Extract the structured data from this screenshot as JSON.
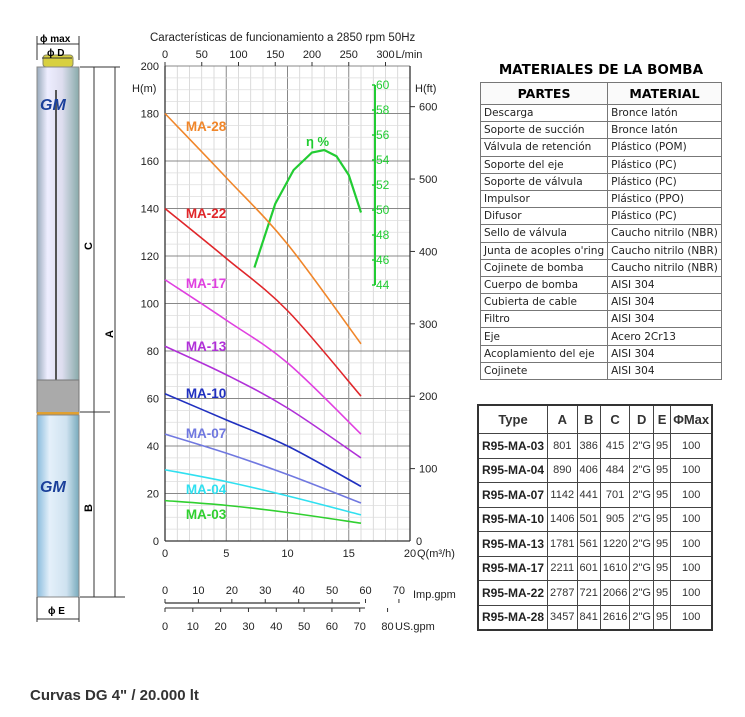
{
  "pump": {
    "brand": "GM",
    "phi_max": "ϕ max",
    "phi_d": "ϕ D",
    "phi_e": "ϕ E",
    "dim_a": "A",
    "dim_b": "B",
    "dim_c": "C"
  },
  "chart_data": {
    "type": "line",
    "title": "Características de funcionamiento a 2850 rpm 50Hz",
    "xlabel": "Q(m³/h)",
    "ylabel": "H(m)",
    "ylabel_right": "H(ft)",
    "xlim": [
      0,
      20
    ],
    "ylim": [
      0,
      200
    ],
    "x_ticks": [
      0,
      5,
      10,
      15,
      20
    ],
    "y_ticks": [
      0,
      20,
      40,
      60,
      80,
      100,
      120,
      140,
      160,
      180,
      200
    ],
    "ft_ticks": [
      100,
      200,
      300,
      400,
      500,
      600
    ],
    "top_axis": {
      "label": "L/min",
      "ticks": [
        0,
        50,
        100,
        150,
        200,
        250,
        300
      ]
    },
    "imp_axis": {
      "label": "Imp.gpm",
      "ticks": [
        0,
        10,
        20,
        30,
        40,
        50,
        60,
        70
      ]
    },
    "us_axis": {
      "label": "US.gpm",
      "ticks": [
        0,
        10,
        20,
        30,
        40,
        50,
        60,
        70,
        80
      ]
    },
    "eff_axis": {
      "label": "η %",
      "ticks": [
        44,
        46,
        48,
        50,
        52,
        54,
        56,
        58,
        60
      ]
    },
    "grid": true,
    "x": [
      0,
      5,
      10,
      16
    ],
    "series": [
      {
        "name": "MA-28",
        "color": "#f0862a",
        "values": [
          180,
          153,
          125,
          83
        ]
      },
      {
        "name": "MA-22",
        "color": "#e0262a",
        "values": [
          140,
          119,
          97,
          61
        ]
      },
      {
        "name": "MA-17",
        "color": "#e040e0",
        "values": [
          110,
          93,
          75,
          45
        ]
      },
      {
        "name": "MA-13",
        "color": "#b030d8",
        "values": [
          82,
          70,
          56,
          35
        ]
      },
      {
        "name": "MA-10",
        "color": "#2030c0",
        "values": [
          62,
          51,
          40,
          23
        ]
      },
      {
        "name": "MA-07",
        "color": "#7078e0",
        "values": [
          45,
          37,
          28,
          16
        ]
      },
      {
        "name": "MA-04",
        "color": "#30e0f0",
        "values": [
          30,
          25,
          19,
          11
        ]
      },
      {
        "name": "MA-03",
        "color": "#30d030",
        "values": [
          17,
          15,
          12,
          7.5
        ]
      }
    ],
    "efficiency": {
      "color": "#22cc33",
      "x": [
        7.3,
        9,
        10.5,
        12,
        13,
        14,
        15,
        16
      ],
      "values": [
        45.4,
        50.5,
        53.2,
        54.6,
        54.8,
        54.3,
        52.8,
        49.8
      ]
    }
  },
  "materials": {
    "title": "MATERIALES DE LA BOMBA",
    "headers": [
      "PARTES",
      "MATERIAL"
    ],
    "rows": [
      [
        "Descarga",
        "Bronce latón"
      ],
      [
        "Soporte de succión",
        "Bronce latón"
      ],
      [
        "Válvula de retención",
        "Plástico (POM)"
      ],
      [
        "Soporte del eje",
        "Plástico (PC)"
      ],
      [
        "Soporte de válvula",
        "Plástico (PC)"
      ],
      [
        "Impulsor",
        "Plástico (PPO)"
      ],
      [
        "Difusor",
        "Plástico (PC)"
      ],
      [
        "Sello de válvula",
        "Caucho nitrilo (NBR)"
      ],
      [
        "Junta de acoples o'ring",
        "Caucho nitrilo (NBR)"
      ],
      [
        "Cojinete de bomba",
        "Caucho nitrilo (NBR)"
      ],
      [
        "Cuerpo de bomba",
        "AISI 304"
      ],
      [
        "Cubierta de cable",
        "AISI 304"
      ],
      [
        "Filtro",
        "AISI 304"
      ],
      [
        "Eje",
        "Acero 2Cr13"
      ],
      [
        "Acoplamiento del eje",
        "AISI 304"
      ],
      [
        "Cojinete",
        "AISI 304"
      ]
    ]
  },
  "dimensions": {
    "headers": [
      "Type",
      "A",
      "B",
      "C",
      "D",
      "E",
      "ΦMax"
    ],
    "rows": [
      [
        "R95-MA-03",
        "801",
        "386",
        "415",
        "2\"G",
        "95",
        "100"
      ],
      [
        "R95-MA-04",
        "890",
        "406",
        "484",
        "2\"G",
        "95",
        "100"
      ],
      [
        "R95-MA-07",
        "1142",
        "441",
        "701",
        "2\"G",
        "95",
        "100"
      ],
      [
        "R95-MA-10",
        "1406",
        "501",
        "905",
        "2\"G",
        "95",
        "100"
      ],
      [
        "R95-MA-13",
        "1781",
        "561",
        "1220",
        "2\"G",
        "95",
        "100"
      ],
      [
        "R95-MA-17",
        "2211",
        "601",
        "1610",
        "2\"G",
        "95",
        "100"
      ],
      [
        "R95-MA-22",
        "2787",
        "721",
        "2066",
        "2\"G",
        "95",
        "100"
      ],
      [
        "R95-MA-28",
        "3457",
        "841",
        "2616",
        "2\"G",
        "95",
        "100"
      ]
    ]
  },
  "caption": "Curvas DG 4\" / 20.000 lt"
}
